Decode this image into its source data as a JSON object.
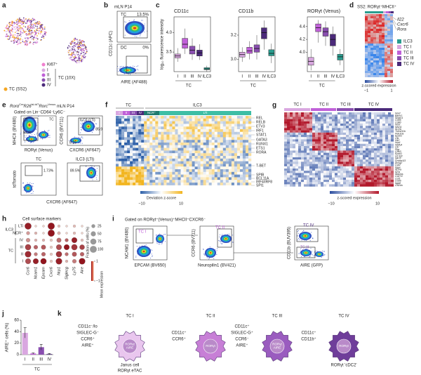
{
  "panel_labels": [
    "a",
    "b",
    "c",
    "d",
    "e",
    "f",
    "g",
    "h",
    "i",
    "j",
    "k"
  ],
  "a": {
    "ki67": "Ki67⁺",
    "subsets": [
      "I",
      "II",
      "III",
      "IV"
    ],
    "ss2": "TC (SS2)",
    "tenx": "TC (10X)"
  },
  "b": {
    "title": "mLN P14",
    "top_gate": "TC",
    "top_pct": "13.5%",
    "bottom_gate": "DC",
    "bottom_pct": "0%",
    "ylabel": "CD11c (APC)",
    "xlabel": "AIRE (AF488)"
  },
  "d": {
    "title": "SS2: RORγt⁺MHCII⁺",
    "genes": [
      "Il22",
      "Cxcr6",
      "Rora"
    ],
    "legend": [
      "ILC3",
      "TC I",
      "TC II",
      "TC III",
      "TC IV"
    ],
    "colorbar_label": "z-scored expression",
    "colorbar_ticks": [
      "−1",
      "1"
    ]
  },
  "e": {
    "title": [
      "Rorα",
      "Cre",
      "R26",
      "lsl-tdT",
      "Rorc",
      "Venus",
      " mLN P14"
    ],
    "gate": "Gated on Lin⁻CD64⁻Ly6C⁻",
    "p1": {
      "gates": [
        "LTi",
        "NCR⁺",
        "TC"
      ],
      "ylabel": "MHCII (BV480)",
      "xlabel": "RORγt (Venus)"
    },
    "p2": {
      "gate": "ILC3 (LTi)",
      "pcts": [
        "85.9",
        "8.15"
      ],
      "ylabel": "CCR6 (BV711)",
      "xlabel": "CXCR6 (AF647)"
    },
    "p3": {
      "title": "TC",
      "pct": "1.73%",
      "ylabel": "tdTomato",
      "xlabel": "CXCR6 (AF647)"
    },
    "p4": {
      "title": "ILC3 (LTi)",
      "pct": "89.5%"
    }
  },
  "f": {
    "groups": [
      "TC",
      "ILC3"
    ],
    "subsets": [
      "I",
      "II",
      "III",
      "IV",
      "NCR⁺",
      "LTi"
    ],
    "genes": [
      "REL",
      "RELB",
      "ETV3",
      "IRF1",
      "STAT1",
      "GATA3",
      "RUNX1",
      "ETS1",
      "RORA",
      "T-BET",
      "SPIB",
      "BCL11A",
      "IRF4/IRF8",
      "SPI1"
    ],
    "colorbar_label": "Deviation z-score",
    "colorbar_ticks": [
      "−10",
      "10"
    ]
  },
  "g": {
    "clusters": [
      "TC I",
      "TC II",
      "TC III",
      "TC IV"
    ],
    "genes": [
      "Nrp2",
      "Bach2",
      "Ncam1",
      "Cd96",
      "Cd80",
      "Nrp1",
      "Nrxn1",
      "Il12rb",
      "Tnfrsf11b",
      "Pde10a",
      "Epsti1",
      "Clb",
      "Hk2",
      "Nrp1",
      "Wdfy4",
      "Ltb",
      "Pigr",
      "Cd63",
      "Epsti1",
      "H2-M2",
      "Nlrc5",
      "Dnase1l3",
      "Ancg2",
      "Lsb2",
      "Itgax",
      "Il15ra",
      "Il2ra",
      "Marcks",
      "Cd274",
      "Ccl5",
      "Cd36",
      "Itgb8",
      "Cd24a"
    ],
    "colorbar_label": "z-scored expression",
    "colorbar_ticks": [
      "−10",
      "10"
    ]
  },
  "i": {
    "gate": "Gated on RORγt⁺(Venus)⁺MHCII⁺CXCR6⁻",
    "p1": {
      "gate": "TC I",
      "ylabel": "NCAM1 (BV480)",
      "xlabel": "EPCAM (BV650)"
    },
    "p2": {
      "gate": "TC II",
      "ylabel": "CCR6 (BV711)",
      "xlabel": "Neuropilin1 (BV421)"
    },
    "p3": {
      "gates": [
        "TC IV",
        "TC III"
      ],
      "ylabel": "CD11b (BUV395)",
      "xlabel": "AIRE (GFP)"
    }
  },
  "k": {
    "cells": [
      {
        "name": "TC I",
        "markers": [
          "CD11c⁻/lo",
          "SIGLEC-G⁻",
          "CCR6⁺",
          "AIRE⁺"
        ],
        "nucleus": [
          "RORγt",
          "AIRE"
        ],
        "note": [
          "Janus cell",
          "RORγt eTAC"
        ]
      },
      {
        "name": "TC II",
        "markers": [
          "CD11c⁺",
          "CCR6⁺"
        ],
        "nucleus": [
          "RORγt"
        ]
      },
      {
        "name": "TC III",
        "markers": [
          "CD11c⁺",
          "SIGLEC-G⁺",
          "CCR6⁻",
          "AIRE⁺"
        ],
        "nucleus": [
          "RORγt",
          "AIRE"
        ]
      },
      {
        "name": "TC IV",
        "markers": [
          "CD11c⁺",
          "CD11b⁺"
        ],
        "nucleus": [
          "RORγt"
        ],
        "note": [
          "RORγt 'cDC2'"
        ]
      }
    ]
  },
  "chart_data": [
    {
      "type": "box",
      "title": "CD11c",
      "ylabel": "log₁₀ fluorescence intensity",
      "categories": [
        "I",
        "II",
        "III",
        "IV",
        "ILC3"
      ],
      "group_label": "TC",
      "colors": [
        "#d9a7e0",
        "#c060d8",
        "#8a4fb0",
        "#4b2a7a",
        "#2a9d8f"
      ],
      "ylim": [
        3.0,
        4.4
      ],
      "yticks": [
        3.5,
        {
          "value": 4,
          "label": "4.0"
        }
      ],
      "boxes": [
        {
          "whislo": 3.25,
          "q1": 3.35,
          "med": 3.4,
          "q3": 3.45,
          "whishi": 3.6
        },
        {
          "whislo": 3.45,
          "q1": 3.6,
          "med": 3.7,
          "q3": 3.85,
          "whishi": 4.1
        },
        {
          "whislo": 3.3,
          "q1": 3.45,
          "med": 3.55,
          "q3": 3.65,
          "whishi": 3.85
        },
        {
          "whislo": 3.3,
          "q1": 3.4,
          "med": 3.48,
          "q3": 3.55,
          "whishi": 3.7
        },
        {
          "whislo": 3.0,
          "q1": 3.05,
          "med": 3.07,
          "q3": 3.1,
          "whishi": 3.15
        }
      ]
    },
    {
      "type": "box",
      "title": "CD11b",
      "categories": [
        "I",
        "II",
        "III",
        "IV",
        "ILC3"
      ],
      "group_label": "TC",
      "colors": [
        "#d9a7e0",
        "#c060d8",
        "#8a4fb0",
        "#4b2a7a",
        "#2a9d8f"
      ],
      "ylim": [
        2.9,
        3.35
      ],
      "yticks": [
        {
          "value": 3,
          "label": "3.0"
        },
        3.2
      ],
      "boxes": [
        {
          "whislo": 2.98,
          "q1": 3.02,
          "med": 3.04,
          "q3": 3.06,
          "whishi": 3.1
        },
        {
          "whislo": 3.0,
          "q1": 3.05,
          "med": 3.07,
          "q3": 3.1,
          "whishi": 3.15
        },
        {
          "whislo": 3.0,
          "q1": 3.06,
          "med": 3.09,
          "q3": 3.12,
          "whishi": 3.2
        },
        {
          "whislo": 3.08,
          "q1": 3.17,
          "med": 3.22,
          "q3": 3.26,
          "whishi": 3.32
        },
        {
          "whislo": 2.97,
          "q1": 3.03,
          "med": 3.05,
          "q3": 3.08,
          "whishi": 3.13
        }
      ]
    },
    {
      "type": "box",
      "title": "RORγt (Venus)",
      "categories": [
        "I",
        "II",
        "III",
        "IV",
        "ILC3"
      ],
      "group_label": "TC",
      "colors": [
        "#d9a7e0",
        "#c060d8",
        "#8a4fb0",
        "#4b2a7a",
        "#2a9d8f"
      ],
      "ylim": [
        3.7,
        4.55
      ],
      "yticks": [
        {
          "value": 4,
          "label": "4.0"
        },
        4.2,
        4.4
      ],
      "boxes": [
        {
          "whislo": 3.72,
          "q1": 3.8,
          "med": 3.86,
          "q3": 3.92,
          "whishi": 4.05
        },
        {
          "whislo": 4.15,
          "q1": 4.32,
          "med": 4.38,
          "q3": 4.44,
          "whishi": 4.5
        },
        {
          "whislo": 4.1,
          "q1": 4.25,
          "med": 4.32,
          "q3": 4.38,
          "whishi": 4.48
        },
        {
          "whislo": 3.95,
          "q1": 4.1,
          "med": 4.2,
          "q3": 4.28,
          "whishi": 4.4
        },
        {
          "whislo": 3.8,
          "q1": 3.88,
          "med": 3.93,
          "q3": 3.97,
          "whishi": 4.05
        }
      ]
    },
    {
      "type": "dot",
      "title": "Cell surface markers",
      "rows": [
        "LTi",
        "NCR⁺",
        "IV",
        "III",
        "II",
        "I"
      ],
      "row_groups": [
        "ILC3",
        "TC"
      ],
      "columns": [
        "Ccr6",
        "Ncam1",
        "Epcam",
        "Cxcr6",
        "Nrp1",
        "Siglecg",
        "Ly75",
        "Aire"
      ],
      "size_label": "Fraction of cells (%)",
      "size_ticks": [
        25,
        50,
        75,
        100
      ],
      "color_label": "Mean expression",
      "color_ticks": [
        {
          "value": 1,
          "label": "1"
        },
        {
          "value": -1,
          "label": "−1"
        }
      ],
      "fraction": [
        [
          90,
          5,
          5,
          95,
          10,
          5,
          10,
          5
        ],
        [
          20,
          10,
          5,
          95,
          15,
          5,
          10,
          5
        ],
        [
          30,
          10,
          10,
          10,
          40,
          20,
          60,
          10
        ],
        [
          70,
          30,
          40,
          10,
          60,
          60,
          70,
          50
        ],
        [
          80,
          20,
          30,
          10,
          70,
          20,
          40,
          30
        ],
        [
          60,
          60,
          70,
          10,
          80,
          10,
          30,
          80
        ]
      ],
      "expression": [
        [
          0.8,
          -0.8,
          -0.8,
          0.9,
          -0.6,
          -0.8,
          -0.6,
          -0.8
        ],
        [
          -0.3,
          -0.5,
          -0.8,
          0.9,
          -0.5,
          -0.8,
          -0.6,
          -0.8
        ],
        [
          -0.2,
          -0.5,
          -0.5,
          -0.7,
          0.1,
          0.2,
          0.8,
          -0.6
        ],
        [
          0.5,
          0.2,
          0.3,
          -0.7,
          0.4,
          0.9,
          0.6,
          0.5
        ],
        [
          0.7,
          0,
          0.2,
          -0.7,
          0.6,
          0.1,
          0.3,
          0.2
        ],
        [
          0.4,
          0.8,
          0.9,
          -0.7,
          0.8,
          -0.5,
          0,
          0.9
        ]
      ]
    },
    {
      "type": "bar",
      "ylabel": "AIRE⁺ cells (%)",
      "categories": [
        "I",
        "II",
        "III",
        "IV"
      ],
      "group_label": "TC",
      "colors": [
        "#d9a7e0",
        "#c060d8",
        "#8a4fb0",
        "#4b2a7a"
      ],
      "values": [
        38,
        2,
        13,
        1
      ],
      "errors": [
        9,
        1,
        5,
        1
      ],
      "ylim": [
        0,
        60
      ],
      "yticks": [
        0,
        20,
        40,
        60
      ]
    }
  ]
}
